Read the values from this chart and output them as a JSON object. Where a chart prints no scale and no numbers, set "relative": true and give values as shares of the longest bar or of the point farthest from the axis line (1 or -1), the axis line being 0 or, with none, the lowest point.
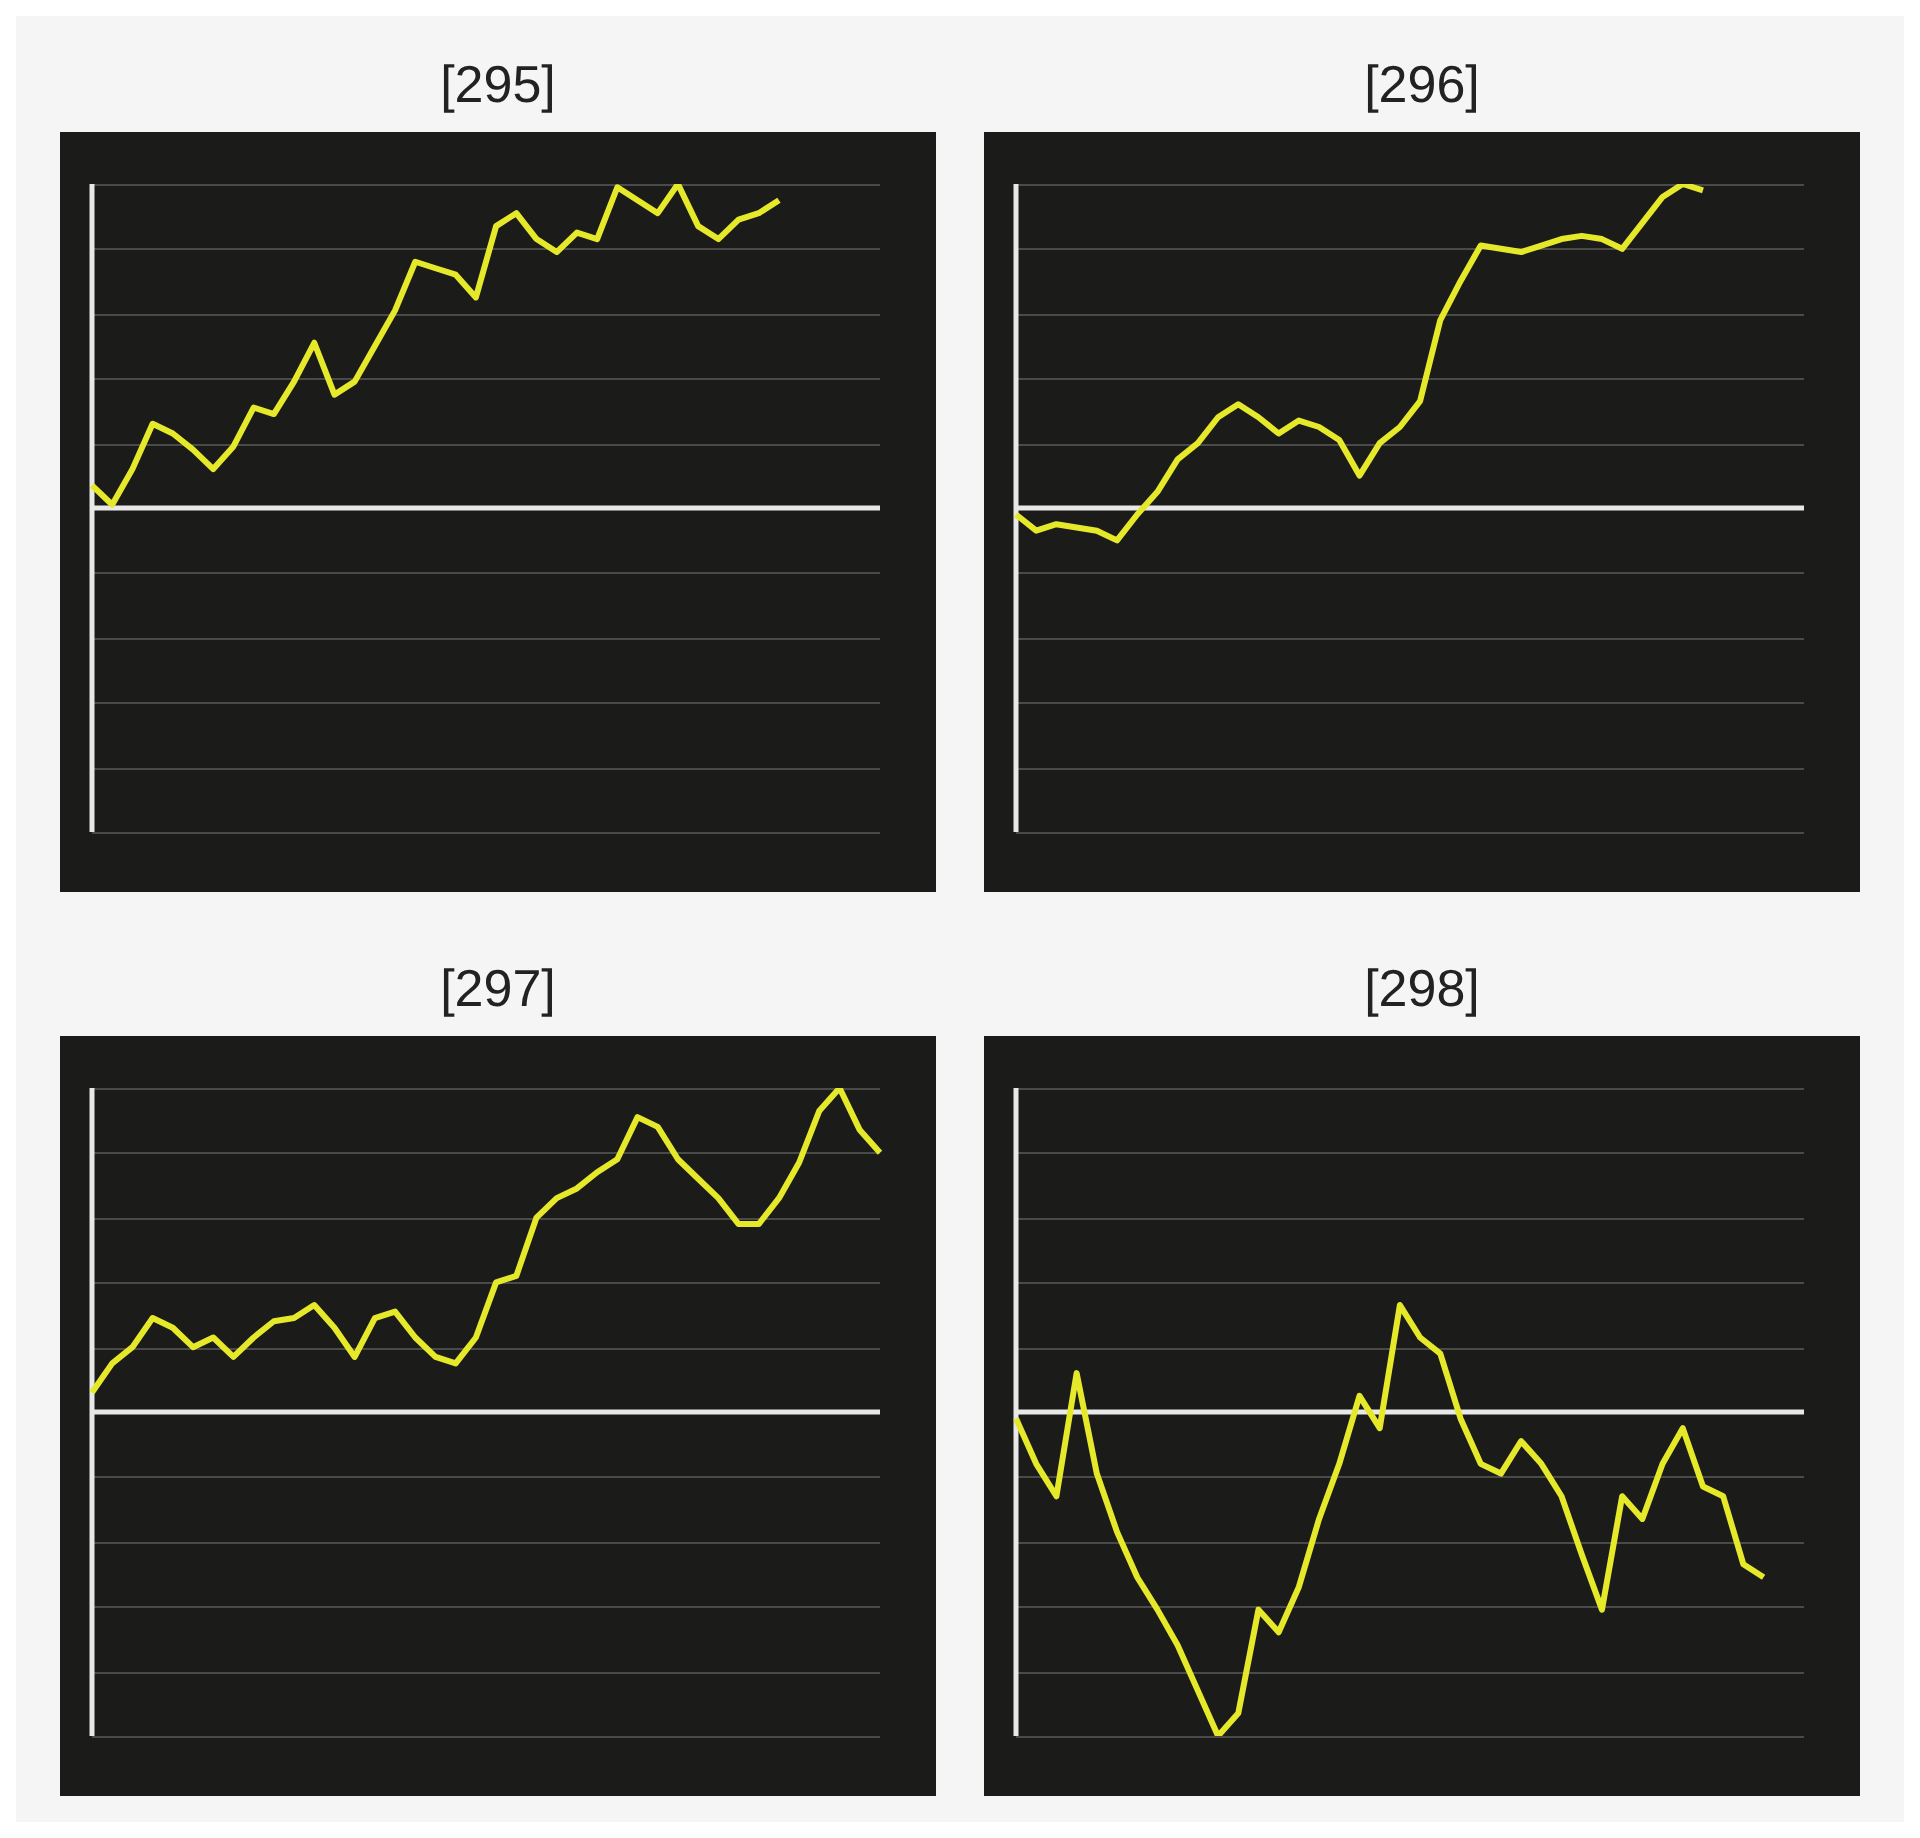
{
  "chart_data": [
    {
      "type": "line",
      "title": "[295]",
      "relative": true,
      "grid": true,
      "categories": [
        null,
        null,
        null,
        null,
        null,
        null,
        null,
        null,
        null,
        null,
        null,
        null,
        null,
        null,
        null,
        null,
        null,
        null,
        null,
        null,
        null,
        null,
        null,
        null,
        null,
        null,
        null,
        null,
        null,
        null,
        null,
        null,
        null,
        null,
        null,
        null,
        null,
        null,
        null,
        null
      ],
      "series": [
        {
          "color": "#e6e82a",
          "values": [
            0.07,
            0.01,
            0.12,
            0.26,
            0.23,
            0.18,
            0.12,
            0.19,
            0.31,
            0.29,
            0.39,
            0.51,
            0.35,
            0.39,
            0.5,
            0.61,
            0.76,
            0.74,
            0.72,
            0.65,
            0.87,
            0.91,
            0.83,
            0.79,
            0.85,
            0.83,
            0.99,
            0.95,
            0.91,
            1.0,
            0.87,
            0.83,
            0.89,
            0.91,
            0.95,
            null,
            null,
            null,
            null,
            null
          ]
        }
      ]
    },
    {
      "type": "line",
      "title": "[296]",
      "relative": true,
      "grid": true,
      "categories": [
        null,
        null,
        null,
        null,
        null,
        null,
        null,
        null,
        null,
        null,
        null,
        null,
        null,
        null,
        null,
        null,
        null,
        null,
        null,
        null,
        null,
        null,
        null,
        null,
        null,
        null,
        null,
        null,
        null,
        null,
        null,
        null,
        null,
        null,
        null,
        null,
        null,
        null,
        null,
        null
      ],
      "series": [
        {
          "color": "#e6e82a",
          "values": [
            -0.02,
            -0.07,
            -0.05,
            -0.06,
            -0.07,
            -0.1,
            -0.02,
            0.05,
            0.15,
            0.2,
            0.28,
            0.32,
            0.28,
            0.23,
            0.27,
            0.25,
            0.21,
            0.1,
            0.2,
            0.25,
            0.33,
            0.58,
            0.7,
            0.81,
            0.8,
            0.79,
            0.81,
            0.83,
            0.84,
            0.83,
            0.8,
            0.88,
            0.96,
            1.0,
            0.98,
            null,
            null,
            null,
            null,
            null
          ]
        }
      ]
    },
    {
      "type": "line",
      "title": "[297]",
      "relative": true,
      "grid": true,
      "categories": [
        null,
        null,
        null,
        null,
        null,
        null,
        null,
        null,
        null,
        null,
        null,
        null,
        null,
        null,
        null,
        null,
        null,
        null,
        null,
        null,
        null,
        null,
        null,
        null,
        null,
        null,
        null,
        null,
        null,
        null,
        null,
        null,
        null,
        null,
        null,
        null,
        null,
        null,
        null,
        null
      ],
      "series": [
        {
          "color": "#e6e82a",
          "values": [
            0.06,
            0.15,
            0.2,
            0.29,
            0.26,
            0.2,
            0.23,
            0.17,
            0.23,
            0.28,
            0.29,
            0.33,
            0.26,
            0.17,
            0.29,
            0.31,
            0.23,
            0.17,
            0.15,
            0.23,
            0.4,
            0.42,
            0.6,
            0.66,
            0.69,
            0.74,
            0.78,
            0.91,
            0.88,
            0.78,
            0.72,
            0.66,
            0.58,
            0.58,
            0.66,
            0.77,
            0.93,
            1.0,
            0.87,
            0.8
          ]
        }
      ]
    },
    {
      "type": "line",
      "title": "[298]",
      "relative": true,
      "grid": true,
      "categories": [
        null,
        null,
        null,
        null,
        null,
        null,
        null,
        null,
        null,
        null,
        null,
        null,
        null,
        null,
        null,
        null,
        null,
        null,
        null,
        null,
        null,
        null,
        null,
        null,
        null,
        null,
        null,
        null,
        null,
        null,
        null,
        null,
        null,
        null,
        null,
        null,
        null,
        null,
        null,
        null
      ],
      "series": [
        {
          "color": "#e6e82a",
          "values": [
            -0.02,
            -0.16,
            -0.26,
            0.12,
            -0.19,
            -0.37,
            -0.51,
            -0.61,
            -0.72,
            -0.86,
            -1.0,
            -0.93,
            -0.61,
            -0.68,
            -0.54,
            -0.33,
            -0.16,
            0.05,
            -0.05,
            0.33,
            0.23,
            0.18,
            -0.02,
            -0.16,
            -0.19,
            -0.09,
            -0.16,
            -0.26,
            -0.44,
            -0.61,
            -0.26,
            -0.33,
            -0.16,
            -0.05,
            -0.23,
            -0.26,
            -0.47,
            -0.51,
            null,
            null
          ]
        }
      ]
    }
  ]
}
